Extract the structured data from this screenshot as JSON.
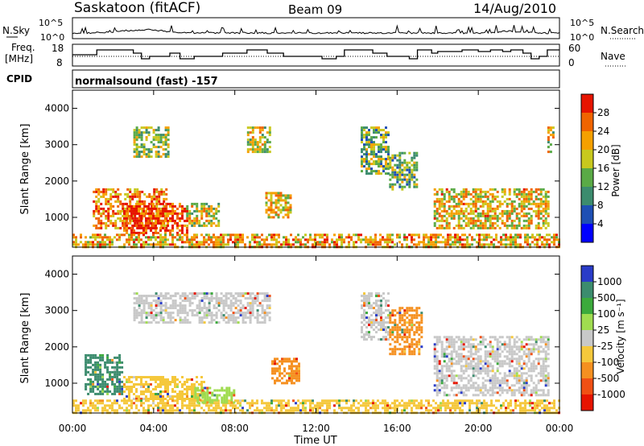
{
  "header": {
    "station": "Saskatoon (fitACF)",
    "beam": "Beam 09",
    "date": "14/Aug/2010"
  },
  "labels": {
    "nsky": "N.Sky",
    "freq_line1": "Freq.",
    "freq_line2": "[MHz]",
    "cpid": "CPID",
    "nsearch": "N.Search",
    "nave": "Nave",
    "cpid_value": "normalsound (fast) -157"
  },
  "noise_axis": {
    "left_ticks": [
      "10^5",
      "10^0"
    ],
    "right_ticks": [
      "10^5",
      "10^0"
    ]
  },
  "freq_axis": {
    "left_ticks": [
      "18",
      "8"
    ],
    "right_ticks": [
      "60",
      "0"
    ]
  },
  "chart_data": [
    {
      "type": "heatmap",
      "name": "power",
      "ylabel": "Slant Range [km]",
      "yticks": [
        "1000",
        "2000",
        "3000",
        "4000"
      ],
      "ylim": [
        180,
        4500
      ],
      "xlim": [
        0,
        24
      ],
      "colorbar_label": "Power [dB]",
      "colorbar_ticks": [
        "4",
        "8",
        "12",
        "16",
        "20",
        "24",
        "28"
      ],
      "colorbar_colors": [
        "#0000ff",
        "#1e4fb4",
        "#3c8c6e",
        "#5aaa46",
        "#c8c81e",
        "#f5a000",
        "#f06400",
        "#e61400"
      ],
      "echo_regions": [
        {
          "t": [
            1.0,
            4.6
          ],
          "r": [
            700,
            1800
          ],
          "level": 0.8
        },
        {
          "t": [
            2.5,
            5.6
          ],
          "r": [
            600,
            1400
          ],
          "level": 0.95
        },
        {
          "t": [
            0.0,
            24.0
          ],
          "r": [
            180,
            550
          ],
          "level": 0.7
        },
        {
          "t": [
            5.6,
            7.2
          ],
          "r": [
            800,
            1400
          ],
          "level": 0.55
        },
        {
          "t": [
            9.5,
            10.7
          ],
          "r": [
            1000,
            1700
          ],
          "level": 0.65
        },
        {
          "t": [
            3.0,
            4.7
          ],
          "r": [
            2700,
            3500
          ],
          "level": 0.5
        },
        {
          "t": [
            8.6,
            9.7
          ],
          "r": [
            2800,
            3500
          ],
          "level": 0.55
        },
        {
          "t": [
            14.2,
            15.6
          ],
          "r": [
            2200,
            3500
          ],
          "level": 0.45
        },
        {
          "t": [
            15.6,
            17.0
          ],
          "r": [
            1800,
            2800
          ],
          "level": 0.4
        },
        {
          "t": [
            17.8,
            23.5
          ],
          "r": [
            700,
            1800
          ],
          "level": 0.65
        },
        {
          "t": [
            23.4,
            23.7
          ],
          "r": [
            2800,
            3500
          ],
          "level": 0.6
        }
      ]
    },
    {
      "type": "heatmap",
      "name": "velocity",
      "ylabel": "Slant Range [km]",
      "xlabel": "Time UT",
      "xticks": [
        "00:00",
        "04:00",
        "08:00",
        "12:00",
        "16:00",
        "20:00",
        "00:00"
      ],
      "yticks": [
        "1000",
        "2000",
        "3000",
        "4000"
      ],
      "ylim": [
        180,
        4500
      ],
      "xlim": [
        0,
        24
      ],
      "colorbar_label": "Velocity [m s⁻¹]",
      "colorbar_ticks": [
        "1000",
        "500",
        "100",
        "25",
        "-25",
        "-100",
        "-500",
        "-1000"
      ],
      "colorbar_colors": [
        "#2a3cc8",
        "#3c8c6e",
        "#3caa3c",
        "#a0dc50",
        "#c8c8c8",
        "#f5c83c",
        "#f59020",
        "#f05014",
        "#e61400"
      ],
      "echo_regions": [
        {
          "t": [
            0.6,
            2.5
          ],
          "r": [
            700,
            1800
          ],
          "color": "#3c8c6e"
        },
        {
          "t": [
            2.5,
            6.5
          ],
          "r": [
            600,
            1200
          ],
          "color": "#f5c83c"
        },
        {
          "t": [
            0.0,
            24.0
          ],
          "r": [
            180,
            550
          ],
          "color": "#f5c83c"
        },
        {
          "t": [
            6.0,
            8.0
          ],
          "r": [
            500,
            900
          ],
          "color": "#a0dc50"
        },
        {
          "t": [
            9.8,
            11.2
          ],
          "r": [
            1000,
            1700
          ],
          "color": "#f59020"
        },
        {
          "t": [
            3.0,
            9.7
          ],
          "r": [
            2700,
            3500
          ],
          "color": "#c8c8c8"
        },
        {
          "t": [
            14.2,
            15.6
          ],
          "r": [
            2200,
            3500
          ],
          "color": "#c8c8c8"
        },
        {
          "t": [
            15.6,
            17.2
          ],
          "r": [
            1800,
            3100
          ],
          "color": "#f59020"
        },
        {
          "t": [
            17.8,
            23.5
          ],
          "r": [
            700,
            2300
          ],
          "color": "#c8c8c8"
        }
      ]
    }
  ]
}
